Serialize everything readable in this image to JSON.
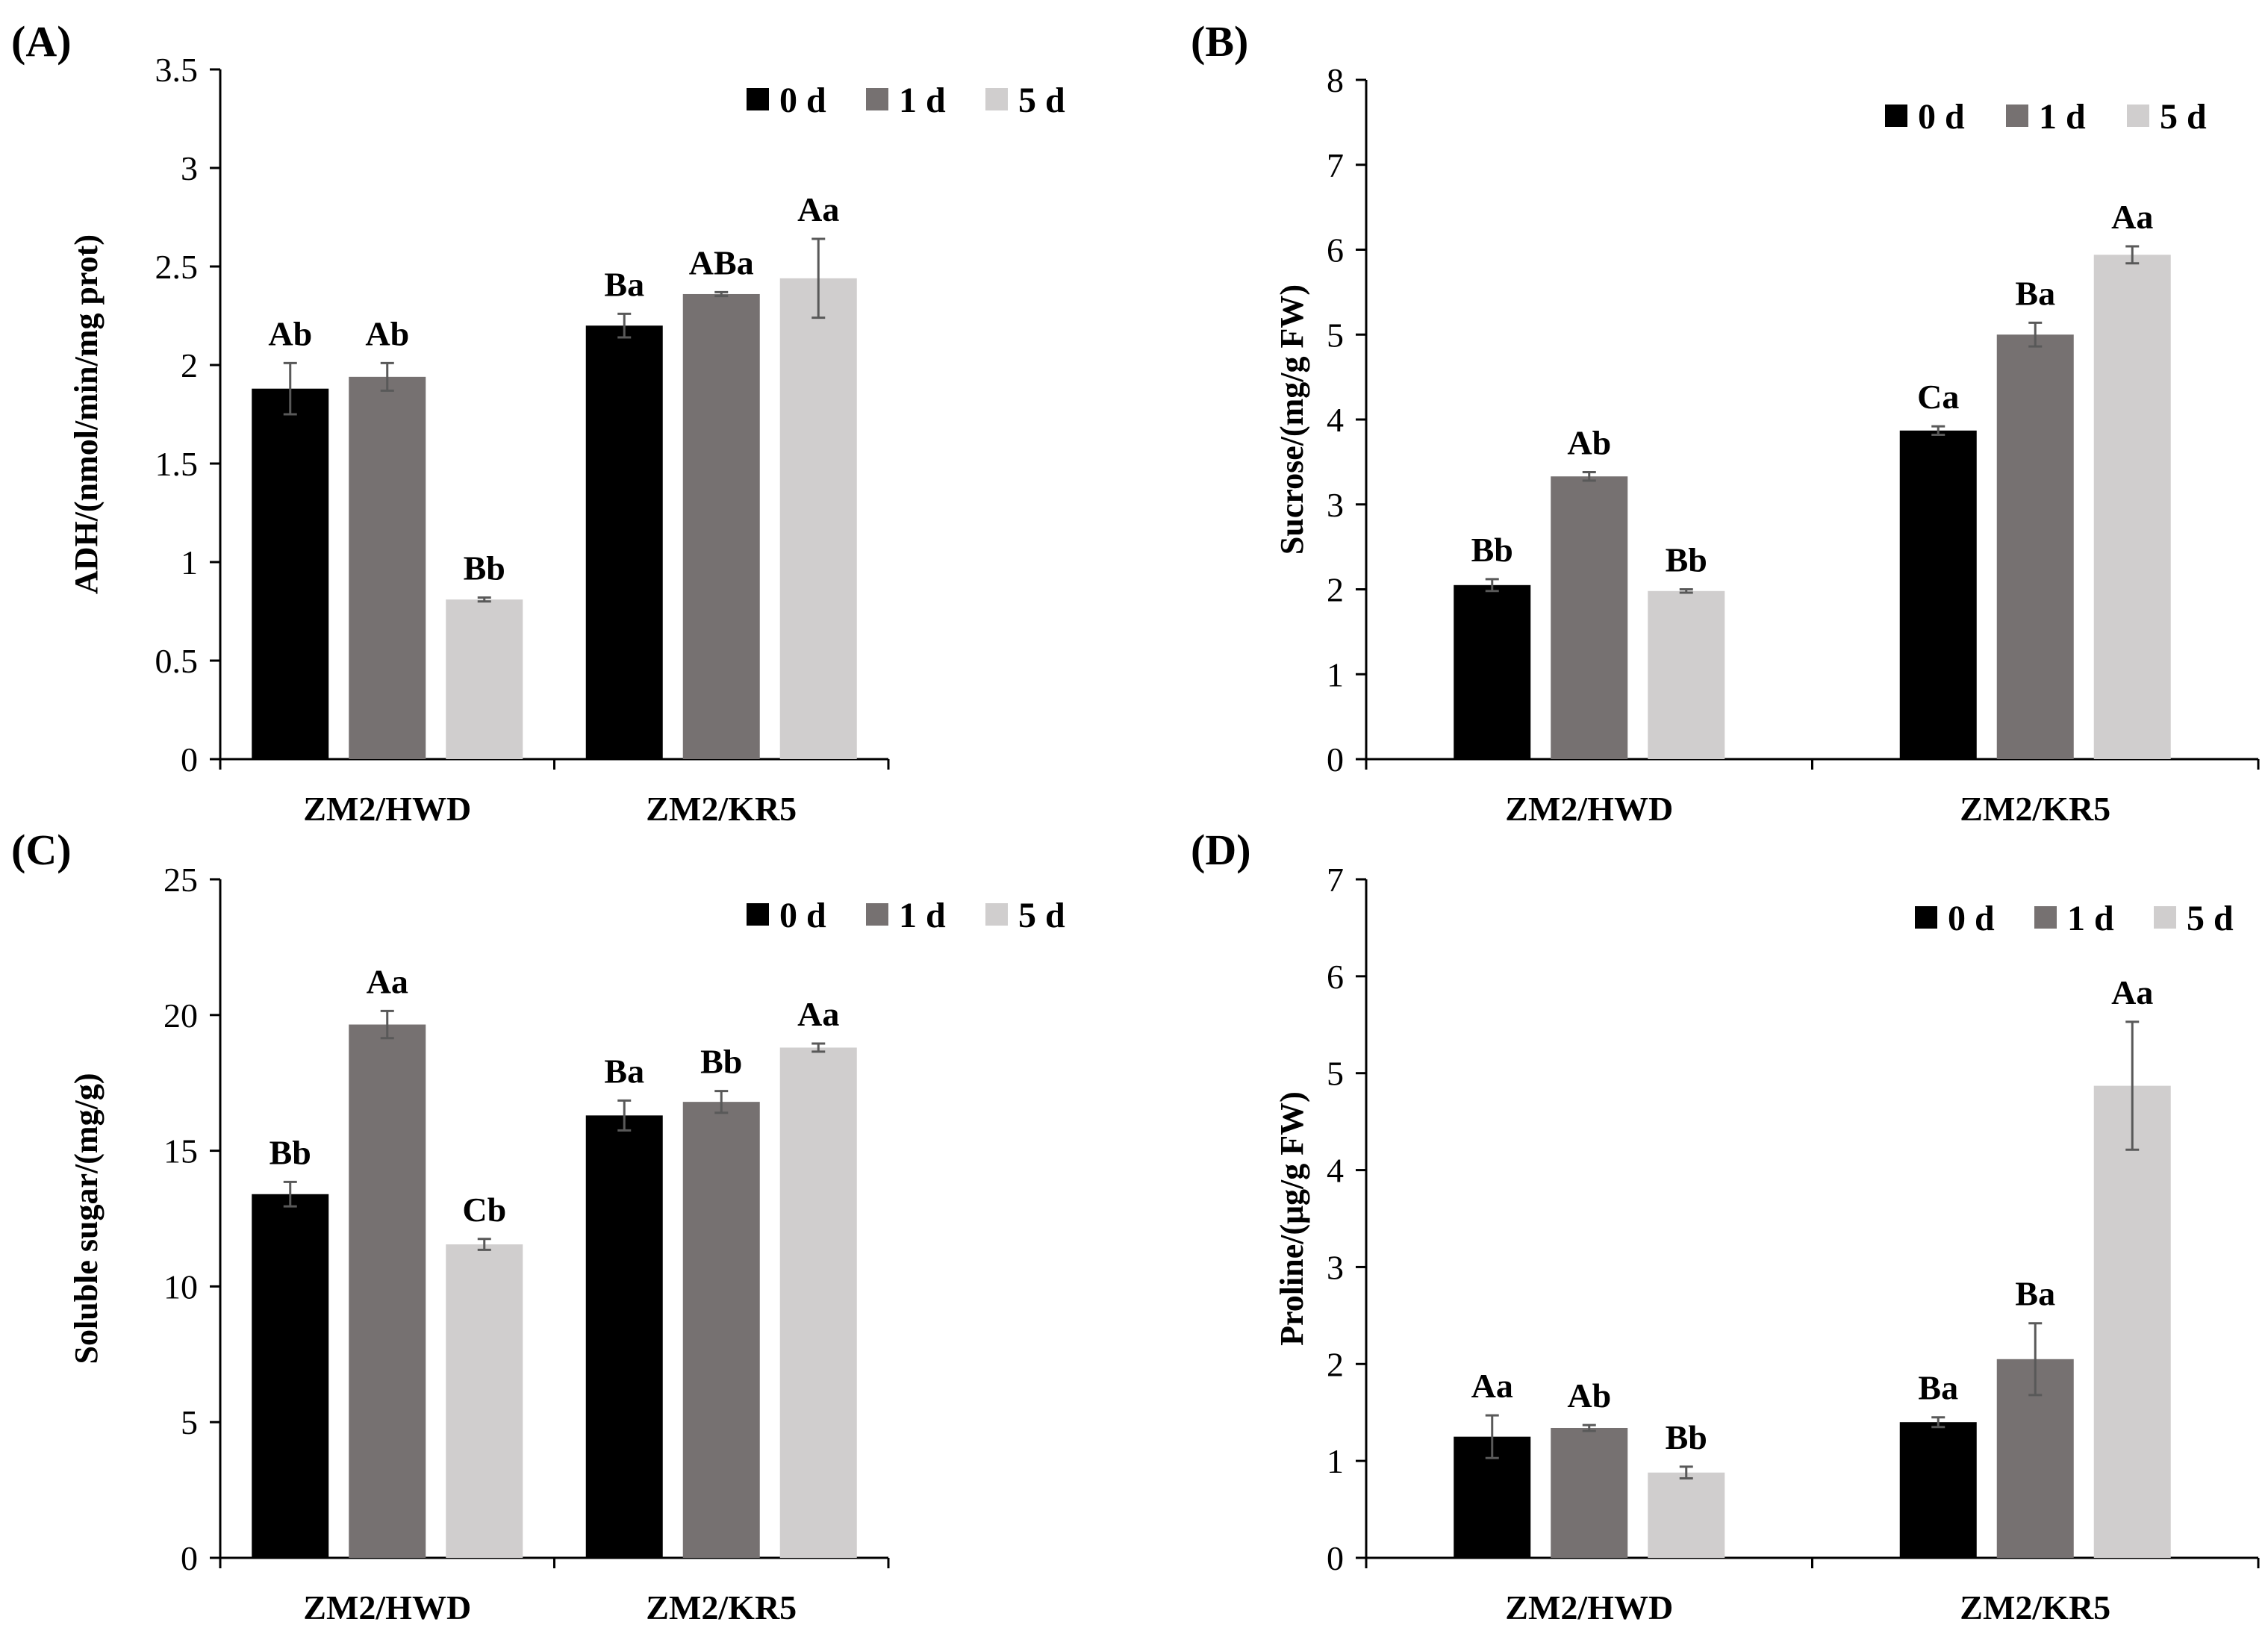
{
  "chart_data": [
    {
      "type": "bar",
      "panel_label": "(A)",
      "title": "",
      "xlabel": "",
      "ylabel": "ADH/(nmol/min/mg prot)",
      "categories": [
        "ZM2/HWD",
        "ZM2/KR5"
      ],
      "ylim": [
        0,
        3.5
      ],
      "yticks": [
        0,
        0.5,
        1,
        1.5,
        2,
        2.5,
        3,
        3.5
      ],
      "ytick_labels": [
        "0",
        "0.5",
        "1",
        "1.5",
        "2",
        "2.5",
        "3",
        "3.5"
      ],
      "grid": false,
      "legend_position": "top-right",
      "series": [
        {
          "name": "0 d",
          "color": "#000000",
          "values": [
            1.88,
            2.2
          ],
          "errors": [
            0.13,
            0.06
          ],
          "labels": [
            "Ab",
            "Ba"
          ]
        },
        {
          "name": "1 d",
          "color": "#767171",
          "values": [
            1.94,
            2.36
          ],
          "errors": [
            0.07,
            0.01
          ],
          "labels": [
            "Ab",
            "ABa"
          ]
        },
        {
          "name": "5 d",
          "color": "#d0cece",
          "values": [
            0.81,
            2.44
          ],
          "errors": [
            0.01,
            0.2
          ],
          "labels": [
            "Bb",
            "Aa"
          ]
        }
      ]
    },
    {
      "type": "bar",
      "panel_label": "(B)",
      "title": "",
      "xlabel": "",
      "ylabel": "Sucrose/(mg/g FW)",
      "categories": [
        "ZM2/HWD",
        "ZM2/KR5"
      ],
      "ylim": [
        0,
        8
      ],
      "yticks": [
        0,
        1,
        2,
        3,
        4,
        5,
        6,
        7,
        8
      ],
      "ytick_labels": [
        "0",
        "1",
        "2",
        "3",
        "4",
        "5",
        "6",
        "7",
        "8"
      ],
      "grid": false,
      "legend_position": "top-right",
      "series": [
        {
          "name": "0 d",
          "color": "#000000",
          "values": [
            2.05,
            3.87
          ],
          "errors": [
            0.07,
            0.05
          ],
          "labels": [
            "Bb",
            "Ca"
          ]
        },
        {
          "name": "1 d",
          "color": "#767171",
          "values": [
            3.33,
            5.0
          ],
          "errors": [
            0.05,
            0.14
          ],
          "labels": [
            "Ab",
            "Ba"
          ]
        },
        {
          "name": "5 d",
          "color": "#d0cece",
          "values": [
            1.98,
            5.94
          ],
          "errors": [
            0.02,
            0.1
          ],
          "labels": [
            "Bb",
            "Aa"
          ]
        }
      ]
    },
    {
      "type": "bar",
      "panel_label": "(C)",
      "title": "",
      "xlabel": "",
      "ylabel": "Soluble sugar/(mg/g)",
      "categories": [
        "ZM2/HWD",
        "ZM2/KR5"
      ],
      "ylim": [
        0,
        25
      ],
      "yticks": [
        0,
        5,
        10,
        15,
        20,
        25
      ],
      "ytick_labels": [
        "0",
        "5",
        "10",
        "15",
        "20",
        "25"
      ],
      "grid": false,
      "legend_position": "top-right",
      "series": [
        {
          "name": "0 d",
          "color": "#000000",
          "values": [
            13.4,
            16.3
          ],
          "errors": [
            0.45,
            0.55
          ],
          "labels": [
            "Bb",
            "Ba"
          ]
        },
        {
          "name": "1 d",
          "color": "#767171",
          "values": [
            19.65,
            16.8
          ],
          "errors": [
            0.5,
            0.4
          ],
          "labels": [
            "Aa",
            "Bb"
          ]
        },
        {
          "name": "5 d",
          "color": "#d0cece",
          "values": [
            11.55,
            18.8
          ],
          "errors": [
            0.2,
            0.15
          ],
          "labels": [
            "Cb",
            "Aa"
          ]
        }
      ]
    },
    {
      "type": "bar",
      "panel_label": "(D)",
      "title": "",
      "xlabel": "",
      "ylabel": "Proline/(μg/g FW)",
      "categories": [
        "ZM2/HWD",
        "ZM2/KR5"
      ],
      "ylim": [
        0,
        7
      ],
      "yticks": [
        0,
        1,
        2,
        3,
        4,
        5,
        6,
        7
      ],
      "ytick_labels": [
        "0",
        "1",
        "2",
        "3",
        "4",
        "5",
        "6",
        "7"
      ],
      "grid": false,
      "legend_position": "top-right",
      "series": [
        {
          "name": "0 d",
          "color": "#000000",
          "values": [
            1.25,
            1.4
          ],
          "errors": [
            0.22,
            0.05
          ],
          "labels": [
            "Aa",
            "Ba"
          ]
        },
        {
          "name": "1 d",
          "color": "#767171",
          "values": [
            1.34,
            2.05
          ],
          "errors": [
            0.03,
            0.37
          ],
          "labels": [
            "Ab",
            "Ba"
          ]
        },
        {
          "name": "5 d",
          "color": "#d0cece",
          "values": [
            0.88,
            4.87
          ],
          "errors": [
            0.06,
            0.66
          ],
          "labels": [
            "Bb",
            "Aa"
          ]
        }
      ]
    }
  ]
}
